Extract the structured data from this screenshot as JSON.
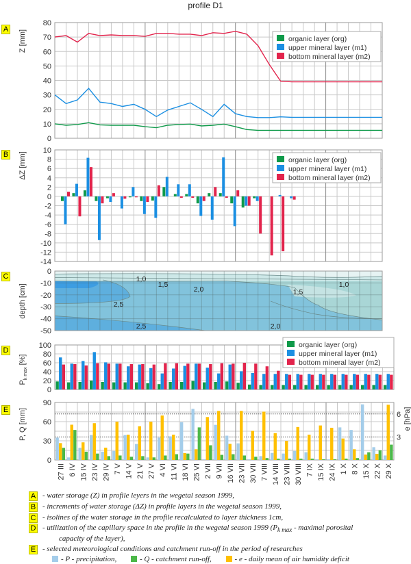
{
  "title": "profile D1",
  "colors": {
    "org": "#0f9a4a",
    "m1": "#1b8fe2",
    "m2": "#e2244c",
    "P": "#a4cdea",
    "Q": "#4cb848",
    "e": "#ffc000",
    "tag": "#ffff00"
  },
  "legend_series": [
    "organic layer (org)",
    "upper mineral layer (m1)",
    "bottom mineral layer (m2)"
  ],
  "chart_data": [
    {
      "panel": "A",
      "type": "line",
      "ylabel": "Z [mm]",
      "ylim": [
        0,
        80
      ],
      "yticks": [
        0,
        10,
        20,
        30,
        40,
        50,
        60,
        70,
        80
      ],
      "legend": "top-right",
      "grid": true,
      "x": [
        "27 III",
        "6 IV",
        "15 IV",
        "23 IV",
        "29 IV",
        "7 V",
        "14 V",
        "21 V",
        "27 V",
        "4 VI",
        "11 VI",
        "18 VI",
        "25 VI",
        "2 VII",
        "9 VII",
        "16 VII",
        "23 VII",
        "30 VII",
        "7 VIII",
        "14 VIII",
        "23 VIII",
        "30 VIII",
        "7 IX",
        "15 IX",
        "24 IX",
        "1 X",
        "8 X",
        "15 X",
        "22 X",
        "29 X"
      ],
      "series": [
        {
          "name": "organic layer (org)",
          "values": [
            10,
            9,
            9.5,
            10.8,
            9.3,
            9,
            9,
            9,
            8,
            7.3,
            9,
            9.5,
            9.8,
            8.5,
            9,
            9.8,
            8,
            6,
            5.5,
            5.5,
            5.5,
            5.5,
            5.5,
            5.5,
            5.5,
            5.5,
            5.5,
            5.5,
            5.5,
            5.5
          ]
        },
        {
          "name": "upper mineral layer (m1)",
          "values": [
            30,
            24,
            26.5,
            34.5,
            25,
            24,
            22,
            23.5,
            20,
            15,
            19.5,
            22,
            24.5,
            20,
            15,
            23.5,
            17,
            15,
            14.3,
            14.3,
            14.8,
            14.5,
            14.5,
            14.5,
            14.5,
            14.5,
            14.5,
            14.5,
            14.5,
            14.5
          ]
        },
        {
          "name": "bottom mineral layer (m2)",
          "values": [
            70,
            71,
            66.5,
            72.5,
            71,
            71.5,
            71,
            71,
            70.5,
            72.5,
            72.5,
            72,
            72,
            71,
            73,
            72.5,
            74,
            72,
            64,
            51,
            39.5,
            39,
            39,
            39,
            39,
            39,
            39,
            39,
            39,
            39
          ]
        }
      ]
    },
    {
      "panel": "B",
      "type": "bar",
      "ylabel": "ΔZ [mm]",
      "ylim": [
        -14,
        10
      ],
      "yticks": [
        -14,
        -12,
        -10,
        -8,
        -6,
        -4,
        -2,
        0,
        2,
        4,
        6,
        8,
        10
      ],
      "legend": "top-right",
      "grid": true,
      "series": [
        {
          "name": "organic layer (org)",
          "values": [
            -1,
            0.7,
            1.3,
            -1,
            -0.4,
            0,
            -0.2,
            -1,
            -0.9,
            2,
            0.5,
            0.5,
            -1.5,
            0.7,
            0.7,
            -1.5,
            -2.4,
            -0.4,
            0,
            0,
            0,
            0,
            0,
            0,
            0,
            0,
            0,
            0,
            0
          ]
        },
        {
          "name": "upper mineral layer (m1)",
          "values": [
            -6,
            2.7,
            8.3,
            -9.4,
            -1.2,
            -2.6,
            2,
            -3.8,
            -4.6,
            4.2,
            2.6,
            2.6,
            -4.2,
            -5,
            8.4,
            -6.4,
            -2,
            -1,
            0,
            0.3,
            -0.4,
            0,
            0,
            0,
            0,
            0,
            0,
            0,
            0
          ]
        },
        {
          "name": "bottom mineral layer (m2)",
          "values": [
            1,
            -4.3,
            6.3,
            -1.5,
            0.7,
            -0.5,
            -0.2,
            -1.2,
            2.4,
            0,
            -0.3,
            -0.3,
            -1,
            2,
            -0.3,
            1.3,
            -2,
            -8,
            -12.7,
            -11.8,
            -0.7,
            0,
            0,
            0,
            0,
            0,
            0,
            0,
            0
          ]
        }
      ]
    },
    {
      "panel": "C",
      "type": "heatmap",
      "ylabel": "depth [cm]",
      "ylim": [
        -50,
        0
      ],
      "yticks": [
        -50,
        -40,
        -30,
        -20,
        -10,
        0
      ],
      "grid": true,
      "contour_labels": [
        "1,0",
        "1,5",
        "2,0",
        "2,5",
        "1,5",
        "1,0",
        "2,5",
        "2,0"
      ]
    },
    {
      "panel": "D",
      "type": "bar",
      "ylabel_main": "P",
      "ylabel_sub": "k max",
      "ylabel_unit": " [%]",
      "ylim": [
        0,
        100
      ],
      "yticks": [
        0,
        20,
        40,
        60,
        80,
        100
      ],
      "legend": "top-right",
      "grid": true,
      "series": [
        {
          "name": "organic layer (org)",
          "values": [
            18,
            16,
            17,
            20,
            17,
            16,
            16,
            16,
            14,
            12,
            17,
            17,
            19,
            16,
            17,
            18,
            15,
            11,
            10,
            10,
            10,
            10,
            10,
            10,
            10,
            10,
            10,
            10,
            10,
            10
          ]
        },
        {
          "name": "upper mineral layer (m1)",
          "values": [
            72,
            58,
            64,
            84,
            61,
            58,
            52,
            56,
            48,
            36,
            47,
            53,
            58,
            49,
            36,
            56,
            41,
            37,
            35,
            35,
            35,
            35,
            35,
            35,
            35,
            35,
            35,
            35,
            35,
            35
          ]
        },
        {
          "name": "bottom mineral layer (m2)",
          "values": [
            56,
            57,
            54,
            59,
            58,
            58,
            57,
            57,
            56,
            59,
            59,
            58,
            58,
            57,
            59,
            58,
            60,
            58,
            52,
            42,
            33,
            33,
            33,
            33,
            33,
            33,
            33,
            33,
            33,
            33
          ]
        }
      ]
    },
    {
      "panel": "E",
      "type": "bar",
      "ylabel": "P, Q [mm]",
      "ylim": [
        0,
        90
      ],
      "yticks": [
        0,
        30,
        60,
        90
      ],
      "ylabel_right": "e [hPa]",
      "ylim_right": [
        0,
        7.5
      ],
      "yticks_right": [
        3,
        6
      ],
      "grid": true,
      "series": [
        {
          "name": "P",
          "values": [
            35,
            4,
            19,
            39,
            13,
            14,
            39,
            25,
            4,
            35,
            37,
            59,
            80,
            1,
            55,
            38,
            26,
            1,
            6,
            11,
            10,
            14,
            12,
            1,
            1,
            51,
            47,
            87,
            20,
            7
          ]
        },
        {
          "name": "e",
          "axis": "right",
          "values": [
            2.2,
            4.6,
            2.3,
            4.8,
            1.6,
            5.0,
            3.3,
            4.4,
            5.0,
            5.8,
            3.3,
            0.9,
            1.4,
            5.6,
            6.4,
            2.1,
            6.4,
            3.8,
            6.3,
            3.5,
            2.5,
            4.3,
            3.3,
            4.5,
            4.2,
            2.8,
            1.4,
            0.7,
            0.8,
            7.2
          ]
        },
        {
          "name": "Q",
          "values": [
            19,
            47,
            13,
            10,
            6,
            7,
            5,
            6,
            4,
            7,
            9,
            10,
            51,
            23,
            8,
            9,
            7,
            5,
            3,
            2,
            2,
            2,
            2,
            1,
            1,
            2,
            3,
            12,
            15,
            24
          ]
        }
      ]
    }
  ],
  "notes": {
    "A": {
      "tag": "A",
      "text": "- water storage (Z) in profile leyers in the wegetal season 1999,"
    },
    "B": {
      "tag": "B",
      "text": "- increments of water storage (ΔZ) in profile layers in the wegetal season 1999,"
    },
    "C": {
      "tag": "C",
      "text": "- isolines of the water storage in the profile recalculated to layer thickness 1cm,"
    },
    "D": {
      "tag": "D",
      "text": "- utilization of the capillary space in the profile in the wegetal season 1999 (P",
      "sub": "k max",
      "text2": " - maximal porosital",
      "cont": "capacity of the layer),"
    },
    "E": {
      "tag": "E",
      "text": "- selected meteorological conditions and catchment run-off in the period of researches"
    },
    "legend": {
      "P": "- P - precipitation,",
      "Q": "- Q - catchment run-off,",
      "e": "- e - daily mean of air humidity deficit"
    }
  }
}
